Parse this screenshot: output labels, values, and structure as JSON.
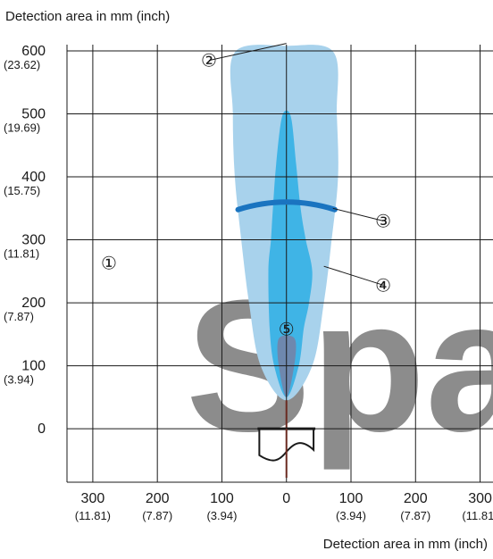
{
  "chart_data": {
    "type": "area",
    "title": "",
    "x_axis": {
      "label": "Detection area in mm (inch)",
      "range": [
        -340,
        320
      ],
      "ticks": [
        {
          "value": -300,
          "main": "300",
          "sub": "(11.81)"
        },
        {
          "value": -200,
          "main": "200",
          "sub": "(7.87)"
        },
        {
          "value": -100,
          "main": "100",
          "sub": "(3.94)"
        },
        {
          "value": 0,
          "main": "0",
          "sub": ""
        },
        {
          "value": 100,
          "main": "100",
          "sub": "(3.94)"
        },
        {
          "value": 200,
          "main": "200",
          "sub": "(7.87)"
        },
        {
          "value": 300,
          "main": "300",
          "sub": "(11.81)"
        }
      ],
      "gridlines": [
        -300,
        -200,
        -100,
        0,
        100,
        200,
        300
      ]
    },
    "y_axis": {
      "label": "Detection area in mm (inch)",
      "range": [
        -85,
        610
      ],
      "ticks": [
        {
          "value": 600,
          "main": "600",
          "sub": "(23.62)"
        },
        {
          "value": 500,
          "main": "500",
          "sub": "(19.69)"
        },
        {
          "value": 400,
          "main": "400",
          "sub": "(15.75)"
        },
        {
          "value": 300,
          "main": "300",
          "sub": "(11.81)"
        },
        {
          "value": 200,
          "main": "200",
          "sub": "(7.87)"
        },
        {
          "value": 100,
          "main": "100",
          "sub": "(3.94)"
        },
        {
          "value": 0,
          "main": "0",
          "sub": ""
        }
      ],
      "gridlines": [
        600,
        500,
        400,
        300,
        200,
        100,
        0
      ]
    },
    "regions": [
      {
        "id": "outer",
        "color": "#a8d2ec",
        "points": [
          [
            -80,
            598
          ],
          [
            -83,
            500
          ],
          [
            -80,
            400
          ],
          [
            -70,
            300
          ],
          [
            -58,
            200
          ],
          [
            -40,
            100
          ],
          [
            0,
            45
          ],
          [
            40,
            100
          ],
          [
            58,
            200
          ],
          [
            70,
            300
          ],
          [
            80,
            400
          ],
          [
            78,
            500
          ],
          [
            73,
            598
          ],
          [
            0,
            608
          ]
        ]
      },
      {
        "id": "inner",
        "color": "#3fb4e6",
        "points": [
          [
            0,
            505
          ],
          [
            -8,
            490
          ],
          [
            -16,
            420
          ],
          [
            -21,
            350
          ],
          [
            -24,
            300
          ],
          [
            -28,
            250
          ],
          [
            -26,
            160
          ],
          [
            -19,
            100
          ],
          [
            0,
            50
          ],
          [
            19,
            100
          ],
          [
            27,
            160
          ],
          [
            35,
            200
          ],
          [
            40,
            250
          ],
          [
            30,
            300
          ],
          [
            22,
            350
          ],
          [
            15,
            420
          ],
          [
            8,
            490
          ]
        ]
      },
      {
        "id": "near",
        "color": "#6e88ae",
        "points": [
          [
            -13,
            140
          ],
          [
            -12,
            100
          ],
          [
            0,
            50
          ],
          [
            12,
            100
          ],
          [
            14,
            140
          ],
          [
            0,
            148
          ]
        ]
      }
    ],
    "arc": {
      "color": "#1a74c0",
      "from": [
        -75,
        348
      ],
      "to": [
        75,
        348
      ],
      "peak": 360
    },
    "sensor": {
      "top": 0,
      "bottom": -45,
      "half_width": 42,
      "axis_end": -78
    },
    "callouts": [
      {
        "symbol": "①",
        "at": [
          -275,
          263
        ]
      },
      {
        "symbol": "②",
        "at": [
          -120,
          585
        ],
        "leader_to": [
          0,
          612
        ]
      },
      {
        "symbol": "③",
        "at": [
          150,
          330
        ],
        "leader_to": [
          72,
          350
        ]
      },
      {
        "symbol": "④",
        "at": [
          150,
          228
        ],
        "leader_to": [
          58,
          258
        ]
      },
      {
        "symbol": "⑤",
        "at": [
          0,
          158
        ]
      }
    ],
    "watermark": {
      "text": "Spa",
      "color": "#ee4b4b",
      "opacity": 0.5
    }
  }
}
